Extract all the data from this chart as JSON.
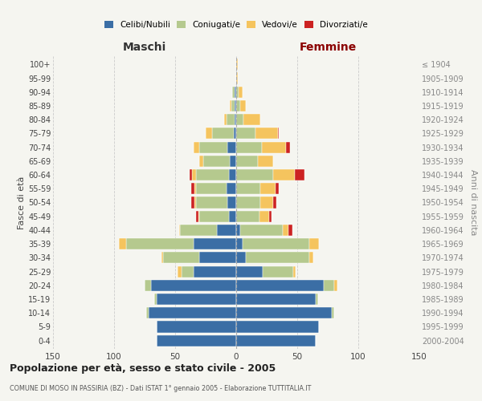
{
  "age_groups": [
    "0-4",
    "5-9",
    "10-14",
    "15-19",
    "20-24",
    "25-29",
    "30-34",
    "35-39",
    "40-44",
    "45-49",
    "50-54",
    "55-59",
    "60-64",
    "65-69",
    "70-74",
    "75-79",
    "80-84",
    "85-89",
    "90-94",
    "95-99",
    "100+"
  ],
  "birth_years": [
    "2000-2004",
    "1995-1999",
    "1990-1994",
    "1985-1989",
    "1980-1984",
    "1975-1979",
    "1970-1974",
    "1965-1969",
    "1960-1964",
    "1955-1959",
    "1950-1954",
    "1945-1949",
    "1940-1944",
    "1935-1939",
    "1930-1934",
    "1925-1929",
    "1920-1924",
    "1915-1919",
    "1910-1914",
    "1905-1909",
    "≤ 1904"
  ],
  "maschi_celibi": [
    65,
    65,
    72,
    65,
    70,
    35,
    30,
    35,
    16,
    6,
    7,
    8,
    6,
    5,
    7,
    2,
    1,
    1,
    1,
    0,
    0
  ],
  "maschi_coniugati": [
    0,
    0,
    2,
    2,
    5,
    10,
    30,
    55,
    30,
    24,
    26,
    25,
    27,
    22,
    23,
    18,
    7,
    3,
    2,
    0,
    0
  ],
  "maschi_vedovi": [
    0,
    0,
    0,
    0,
    0,
    3,
    1,
    6,
    1,
    1,
    1,
    1,
    3,
    3,
    5,
    5,
    2,
    1,
    0,
    0,
    0
  ],
  "maschi_divorziati": [
    0,
    0,
    0,
    0,
    0,
    0,
    0,
    0,
    0,
    2,
    3,
    3,
    2,
    0,
    0,
    0,
    0,
    0,
    0,
    0,
    0
  ],
  "femmine_celibi": [
    65,
    68,
    78,
    65,
    72,
    22,
    8,
    5,
    3,
    0,
    0,
    0,
    0,
    0,
    0,
    0,
    0,
    0,
    0,
    0,
    0
  ],
  "femmine_coniugati": [
    0,
    0,
    2,
    2,
    8,
    25,
    52,
    55,
    35,
    19,
    20,
    20,
    30,
    18,
    21,
    16,
    6,
    3,
    2,
    0,
    0
  ],
  "femmine_vedovi": [
    0,
    0,
    0,
    0,
    3,
    2,
    3,
    8,
    5,
    8,
    10,
    12,
    18,
    12,
    20,
    18,
    14,
    5,
    3,
    1,
    1
  ],
  "femmine_divorziati": [
    0,
    0,
    0,
    0,
    0,
    0,
    0,
    0,
    3,
    2,
    3,
    3,
    8,
    0,
    3,
    1,
    0,
    0,
    0,
    0,
    0
  ],
  "color_celibi": "#3b6ea5",
  "color_coniugati": "#b5c98e",
  "color_vedovi": "#f5c45e",
  "color_divorziati": "#cc2222",
  "title": "Popolazione per età, sesso e stato civile - 2005",
  "subtitle": "COMUNE DI MOSO IN PASSIRIA (BZ) - Dati ISTAT 1° gennaio 2005 - Elaborazione TUTTITALIA.IT",
  "label_maschi": "Maschi",
  "label_femmine": "Femmine",
  "ylabel_left": "Fasce di età",
  "ylabel_right": "Anni di nascita",
  "xlim": 150,
  "background_color": "#f5f5f0",
  "grid_color": "#cccccc"
}
